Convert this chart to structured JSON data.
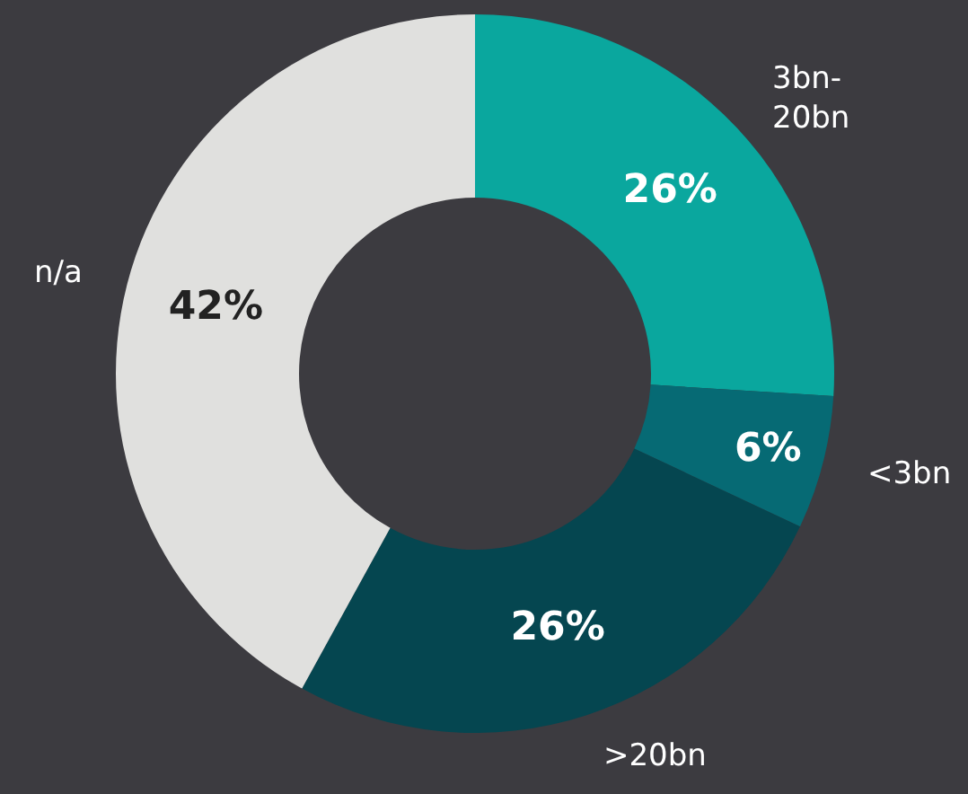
{
  "chart_data": {
    "type": "donut",
    "categories": [
      "3bn-\n20bn",
      "<3bn",
      ">20bn",
      "n/a"
    ],
    "values": [
      26,
      6,
      26,
      42
    ],
    "value_labels": [
      "26%",
      "6%",
      "26%",
      "42%"
    ],
    "colors": [
      "#0aa79e",
      "#066a74",
      "#054650",
      "#e0e0de"
    ],
    "legend": false
  }
}
